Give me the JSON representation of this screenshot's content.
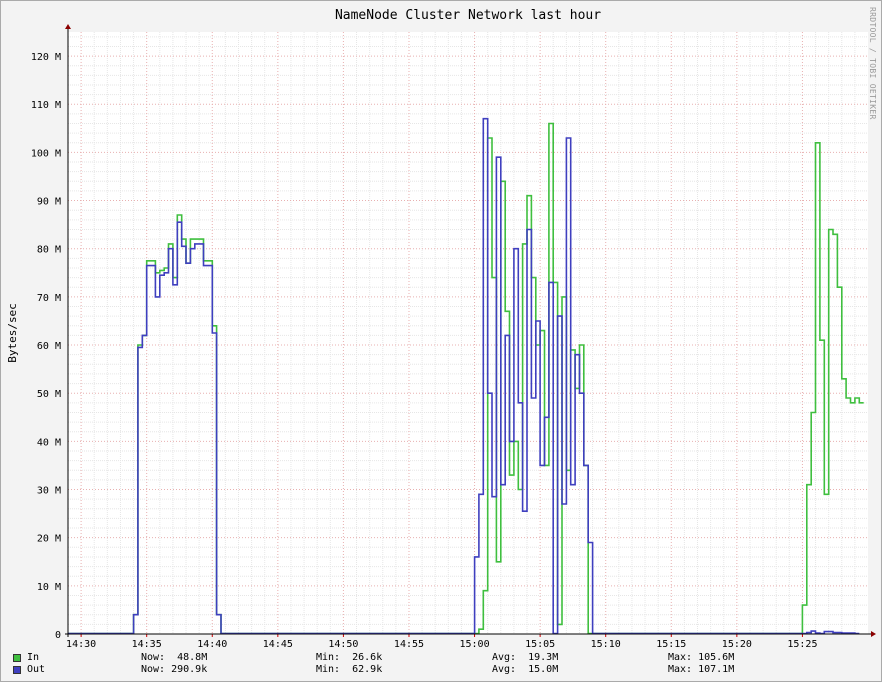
{
  "chart_data": {
    "type": "line",
    "title": "NameNode Cluster Network last hour",
    "ylabel": "Bytes/sec",
    "watermark": "RRDTOOL / TOBI OETIKER",
    "ylim": [
      0,
      125
    ],
    "ytick_values": [
      0,
      10,
      20,
      30,
      40,
      50,
      60,
      70,
      80,
      90,
      100,
      110,
      120
    ],
    "ytick_labels": [
      "0",
      "10 M",
      "20 M",
      "30 M",
      "40 M",
      "50 M",
      "60 M",
      "70 M",
      "80 M",
      "90 M",
      "100 M",
      "110 M",
      "120 M"
    ],
    "xlim": [
      "14:29",
      "15:30"
    ],
    "xtick_labels": [
      "14:30",
      "14:35",
      "14:40",
      "14:45",
      "14:50",
      "14:55",
      "15:00",
      "15:05",
      "15:10",
      "15:15",
      "15:20",
      "15:25"
    ],
    "grid": true,
    "series": [
      {
        "name": "In",
        "color": "#3fbf3f",
        "x": [
          "14:29:00",
          "14:34:00",
          "14:34:20",
          "14:34:40",
          "14:35:00",
          "14:35:40",
          "14:36:00",
          "14:36:20",
          "14:36:40",
          "14:37:00",
          "14:37:20",
          "14:37:40",
          "14:38:00",
          "14:38:20",
          "14:38:40",
          "14:39:00",
          "14:39:20",
          "14:40:00",
          "14:40:20",
          "14:40:40",
          "15:00:20",
          "15:00:40",
          "15:01:00",
          "15:01:20",
          "15:01:40",
          "15:02:00",
          "15:02:20",
          "15:02:40",
          "15:03:00",
          "15:03:20",
          "15:03:40",
          "15:04:00",
          "15:04:20",
          "15:04:40",
          "15:05:00",
          "15:05:20",
          "15:05:40",
          "15:06:00",
          "15:06:20",
          "15:06:40",
          "15:07:00",
          "15:07:20",
          "15:07:40",
          "15:08:00",
          "15:08:20",
          "15:08:40",
          "15:09:00",
          "15:09:20",
          "15:25:00",
          "15:25:20",
          "15:25:40",
          "15:26:00",
          "15:26:20",
          "15:26:40",
          "15:27:00",
          "15:27:20",
          "15:27:40",
          "15:28:00",
          "15:28:20",
          "15:28:40",
          "15:29:00",
          "15:29:20"
        ],
        "values": [
          0.1,
          4,
          60,
          62,
          77.5,
          75,
          75.5,
          76,
          81,
          74,
          87,
          82,
          77,
          82,
          82,
          82,
          77.5,
          64,
          4,
          0.1,
          1,
          9,
          103,
          74,
          15,
          94,
          67,
          33,
          40,
          30,
          81,
          91,
          74,
          60,
          63,
          35,
          106,
          73,
          2,
          70,
          34,
          59,
          51,
          60,
          35,
          0.1,
          0.1,
          0.1,
          6,
          31,
          46,
          102,
          61,
          29,
          84,
          83,
          72,
          53,
          49,
          48,
          49,
          48
        ]
      },
      {
        "name": "Out",
        "color": "#3f3fbf",
        "x": [
          "14:29:00",
          "14:34:00",
          "14:34:20",
          "14:34:40",
          "14:35:00",
          "14:35:40",
          "14:36:00",
          "14:36:20",
          "14:36:40",
          "14:37:00",
          "14:37:20",
          "14:37:40",
          "14:38:00",
          "14:38:20",
          "14:38:40",
          "14:39:00",
          "14:39:20",
          "14:40:00",
          "14:40:20",
          "14:40:40",
          "15:00:00",
          "15:00:20",
          "15:00:40",
          "15:01:00",
          "15:01:20",
          "15:01:40",
          "15:02:00",
          "15:02:20",
          "15:02:40",
          "15:03:00",
          "15:03:20",
          "15:03:40",
          "15:04:00",
          "15:04:20",
          "15:04:40",
          "15:05:00",
          "15:05:20",
          "15:05:40",
          "15:06:00",
          "15:06:20",
          "15:06:40",
          "15:07:00",
          "15:07:20",
          "15:07:40",
          "15:08:00",
          "15:08:20",
          "15:08:40",
          "15:09:00",
          "15:09:20",
          "15:25:00",
          "15:25:20",
          "15:25:40",
          "15:26:00",
          "15:26:20",
          "15:26:40",
          "15:27:00",
          "15:27:20",
          "15:27:40",
          "15:28:00",
          "15:28:20",
          "15:28:40",
          "15:29:00"
        ],
        "values": [
          0.1,
          4,
          59.5,
          62,
          76.5,
          70,
          74.5,
          75,
          80,
          72.5,
          85.5,
          80.5,
          77,
          80,
          81,
          81,
          76.5,
          62.5,
          4,
          0.1,
          16,
          29,
          107,
          50,
          28.5,
          99,
          31,
          62,
          40,
          80,
          48,
          25.5,
          84,
          49,
          65,
          35,
          45,
          73,
          0.1,
          66,
          27,
          103,
          31,
          58,
          50,
          35,
          19,
          0.1,
          0.1,
          0.1,
          0.3,
          0.6,
          0.2,
          0.1,
          0.5,
          0.5,
          0.3,
          0.3,
          0.2,
          0.2,
          0.2,
          0.1
        ]
      }
    ]
  },
  "legend": [
    {
      "name": "In",
      "color": "#3fbf3f",
      "now": "Now:  48.8M",
      "min": "Min:  26.6k",
      "avg": "Avg:  19.3M",
      "max": "Max: 105.6M"
    },
    {
      "name": "Out",
      "color": "#3f3fbf",
      "now": "Now: 290.9k",
      "min": "Min:  62.9k",
      "avg": "Avg:  15.0M",
      "max": "Max: 107.1M"
    }
  ]
}
